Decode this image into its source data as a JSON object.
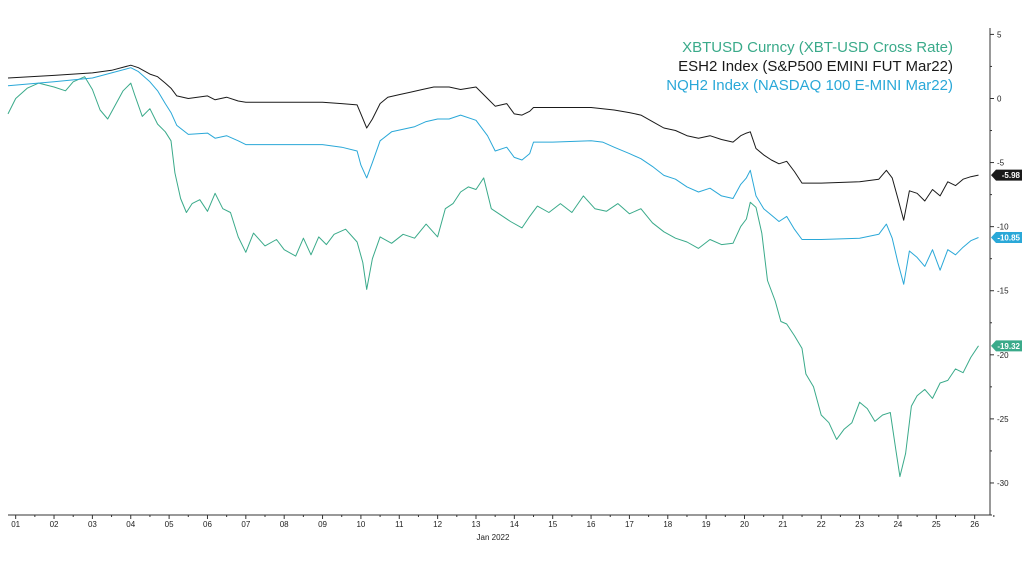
{
  "chart_data": {
    "type": "line",
    "xlabel": "Jan 2022",
    "ylabel": "",
    "x_ticks": [
      "01",
      "02",
      "03",
      "04",
      "05",
      "06",
      "07",
      "08",
      "09",
      "10",
      "11",
      "12",
      "13",
      "14",
      "15",
      "16",
      "17",
      "18",
      "19",
      "20",
      "21",
      "22",
      "23",
      "24",
      "25",
      "26"
    ],
    "y_ticks": [
      5,
      0,
      -5,
      -10,
      -15,
      -20,
      -25,
      -30
    ],
    "ylim": [
      -32.5,
      5.5
    ],
    "xlim": [
      0.8,
      26.4
    ],
    "grid": false,
    "legend_position": "top-right",
    "series": [
      {
        "name": "XBTUSD Curncy (XBT-USD Cross Rate)",
        "color": "#3aaa8a",
        "last_value": "-19.32",
        "points": [
          [
            0.8,
            -1.2
          ],
          [
            1.0,
            0.0
          ],
          [
            1.3,
            0.8
          ],
          [
            1.6,
            1.2
          ],
          [
            2.0,
            0.9
          ],
          [
            2.3,
            0.6
          ],
          [
            2.5,
            1.3
          ],
          [
            2.8,
            1.7
          ],
          [
            3.0,
            0.7
          ],
          [
            3.2,
            -0.9
          ],
          [
            3.4,
            -1.6
          ],
          [
            3.6,
            -0.5
          ],
          [
            3.8,
            0.6
          ],
          [
            4.0,
            1.2
          ],
          [
            4.1,
            0.3
          ],
          [
            4.3,
            -1.4
          ],
          [
            4.5,
            -0.8
          ],
          [
            4.7,
            -2.0
          ],
          [
            4.9,
            -2.6
          ],
          [
            5.05,
            -3.3
          ],
          [
            5.15,
            -5.8
          ],
          [
            5.3,
            -7.8
          ],
          [
            5.45,
            -8.9
          ],
          [
            5.6,
            -8.2
          ],
          [
            5.8,
            -7.9
          ],
          [
            6.0,
            -8.8
          ],
          [
            6.2,
            -7.4
          ],
          [
            6.4,
            -8.6
          ],
          [
            6.6,
            -8.9
          ],
          [
            6.8,
            -10.8
          ],
          [
            7.0,
            -12.0
          ],
          [
            7.2,
            -10.5
          ],
          [
            7.5,
            -11.5
          ],
          [
            7.8,
            -11.0
          ],
          [
            8.0,
            -11.8
          ],
          [
            8.3,
            -12.3
          ],
          [
            8.5,
            -10.9
          ],
          [
            8.7,
            -12.2
          ],
          [
            8.9,
            -10.8
          ],
          [
            9.1,
            -11.4
          ],
          [
            9.3,
            -10.6
          ],
          [
            9.6,
            -10.2
          ],
          [
            9.9,
            -11.2
          ],
          [
            10.05,
            -12.8
          ],
          [
            10.15,
            -14.9
          ],
          [
            10.3,
            -12.5
          ],
          [
            10.5,
            -10.8
          ],
          [
            10.8,
            -11.3
          ],
          [
            11.1,
            -10.6
          ],
          [
            11.4,
            -10.9
          ],
          [
            11.7,
            -9.8
          ],
          [
            12.0,
            -10.8
          ],
          [
            12.2,
            -8.6
          ],
          [
            12.4,
            -8.2
          ],
          [
            12.6,
            -7.3
          ],
          [
            12.8,
            -6.9
          ],
          [
            13.0,
            -7.1
          ],
          [
            13.2,
            -6.2
          ],
          [
            13.4,
            -8.6
          ],
          [
            13.6,
            -9.0
          ],
          [
            13.9,
            -9.6
          ],
          [
            14.2,
            -10.1
          ],
          [
            14.4,
            -9.2
          ],
          [
            14.6,
            -8.4
          ],
          [
            14.9,
            -8.9
          ],
          [
            15.2,
            -8.2
          ],
          [
            15.5,
            -8.9
          ],
          [
            15.8,
            -7.6
          ],
          [
            16.1,
            -8.6
          ],
          [
            16.4,
            -8.8
          ],
          [
            16.7,
            -8.2
          ],
          [
            17.0,
            -9.0
          ],
          [
            17.3,
            -8.6
          ],
          [
            17.6,
            -9.7
          ],
          [
            17.9,
            -10.4
          ],
          [
            18.2,
            -10.9
          ],
          [
            18.5,
            -11.2
          ],
          [
            18.8,
            -11.7
          ],
          [
            19.1,
            -11.0
          ],
          [
            19.4,
            -11.4
          ],
          [
            19.7,
            -11.3
          ],
          [
            19.9,
            -10.0
          ],
          [
            20.05,
            -9.4
          ],
          [
            20.15,
            -8.1
          ],
          [
            20.3,
            -8.5
          ],
          [
            20.45,
            -10.5
          ],
          [
            20.6,
            -14.2
          ],
          [
            20.8,
            -15.8
          ],
          [
            20.95,
            -17.4
          ],
          [
            21.1,
            -17.6
          ],
          [
            21.3,
            -18.5
          ],
          [
            21.5,
            -19.5
          ],
          [
            21.6,
            -21.5
          ],
          [
            21.8,
            -22.5
          ],
          [
            22.0,
            -24.7
          ],
          [
            22.2,
            -25.3
          ],
          [
            22.4,
            -26.6
          ],
          [
            22.6,
            -25.8
          ],
          [
            22.8,
            -25.3
          ],
          [
            23.0,
            -23.7
          ],
          [
            23.2,
            -24.2
          ],
          [
            23.4,
            -25.2
          ],
          [
            23.6,
            -24.7
          ],
          [
            23.8,
            -24.5
          ],
          [
            23.95,
            -27.5
          ],
          [
            24.05,
            -29.5
          ],
          [
            24.2,
            -27.7
          ],
          [
            24.35,
            -24.0
          ],
          [
            24.5,
            -23.2
          ],
          [
            24.7,
            -22.7
          ],
          [
            24.9,
            -23.4
          ],
          [
            25.1,
            -22.2
          ],
          [
            25.3,
            -22.0
          ],
          [
            25.5,
            -21.1
          ],
          [
            25.7,
            -21.4
          ],
          [
            25.9,
            -20.2
          ],
          [
            26.1,
            -19.3
          ]
        ]
      },
      {
        "name": "ESH2 Index (S&P500 EMINI FUT Mar22)",
        "color": "#1a1a1a",
        "last_value": "-5.98",
        "points": [
          [
            0.8,
            1.6
          ],
          [
            2.0,
            1.8
          ],
          [
            3.0,
            2.0
          ],
          [
            3.5,
            2.2
          ],
          [
            4.0,
            2.6
          ],
          [
            4.2,
            2.4
          ],
          [
            4.5,
            1.9
          ],
          [
            4.7,
            1.7
          ],
          [
            4.9,
            1.2
          ],
          [
            5.05,
            0.8
          ],
          [
            5.2,
            0.2
          ],
          [
            5.5,
            0.0
          ],
          [
            6.0,
            0.2
          ],
          [
            6.2,
            -0.1
          ],
          [
            6.5,
            0.1
          ],
          [
            6.8,
            -0.2
          ],
          [
            7.0,
            -0.3
          ],
          [
            8.0,
            -0.3
          ],
          [
            9.0,
            -0.3
          ],
          [
            9.5,
            -0.4
          ],
          [
            9.9,
            -0.5
          ],
          [
            10.0,
            -1.2
          ],
          [
            10.15,
            -2.3
          ],
          [
            10.3,
            -1.6
          ],
          [
            10.5,
            -0.4
          ],
          [
            10.7,
            0.1
          ],
          [
            11.0,
            0.3
          ],
          [
            11.3,
            0.5
          ],
          [
            11.6,
            0.7
          ],
          [
            11.9,
            0.9
          ],
          [
            12.3,
            0.9
          ],
          [
            12.6,
            0.7
          ],
          [
            13.0,
            0.9
          ],
          [
            13.3,
            0.0
          ],
          [
            13.5,
            -0.6
          ],
          [
            13.8,
            -0.4
          ],
          [
            14.0,
            -1.2
          ],
          [
            14.2,
            -1.3
          ],
          [
            14.4,
            -1.0
          ],
          [
            14.5,
            -0.7
          ],
          [
            15.0,
            -0.7
          ],
          [
            16.0,
            -0.7
          ],
          [
            16.3,
            -0.8
          ],
          [
            16.6,
            -0.9
          ],
          [
            17.0,
            -1.1
          ],
          [
            17.3,
            -1.3
          ],
          [
            17.6,
            -1.8
          ],
          [
            17.9,
            -2.3
          ],
          [
            18.2,
            -2.5
          ],
          [
            18.5,
            -2.9
          ],
          [
            18.8,
            -3.1
          ],
          [
            19.1,
            -2.9
          ],
          [
            19.4,
            -3.2
          ],
          [
            19.7,
            -3.4
          ],
          [
            19.9,
            -2.9
          ],
          [
            20.05,
            -2.7
          ],
          [
            20.15,
            -2.6
          ],
          [
            20.3,
            -3.9
          ],
          [
            20.5,
            -4.4
          ],
          [
            20.7,
            -4.8
          ],
          [
            20.9,
            -5.1
          ],
          [
            21.1,
            -4.9
          ],
          [
            21.3,
            -5.7
          ],
          [
            21.5,
            -6.6
          ],
          [
            22.0,
            -6.6
          ],
          [
            23.0,
            -6.5
          ],
          [
            23.5,
            -6.3
          ],
          [
            23.7,
            -5.6
          ],
          [
            23.85,
            -6.2
          ],
          [
            24.0,
            -7.8
          ],
          [
            24.15,
            -9.5
          ],
          [
            24.3,
            -7.2
          ],
          [
            24.5,
            -7.4
          ],
          [
            24.7,
            -8.0
          ],
          [
            24.9,
            -7.1
          ],
          [
            25.1,
            -7.6
          ],
          [
            25.3,
            -6.5
          ],
          [
            25.5,
            -6.8
          ],
          [
            25.7,
            -6.3
          ],
          [
            25.9,
            -6.1
          ],
          [
            26.1,
            -5.98
          ]
        ]
      },
      {
        "name": "NQH2 Index (NASDAQ 100 E-MINI Mar22)",
        "color": "#2aa8d8",
        "last_value": "-10.85",
        "points": [
          [
            0.8,
            1.0
          ],
          [
            2.0,
            1.3
          ],
          [
            3.0,
            1.6
          ],
          [
            3.5,
            2.0
          ],
          [
            4.0,
            2.4
          ],
          [
            4.2,
            2.1
          ],
          [
            4.5,
            1.3
          ],
          [
            4.7,
            0.6
          ],
          [
            4.9,
            -0.4
          ],
          [
            5.05,
            -1.1
          ],
          [
            5.2,
            -2.1
          ],
          [
            5.5,
            -2.8
          ],
          [
            6.0,
            -2.7
          ],
          [
            6.2,
            -3.1
          ],
          [
            6.5,
            -2.9
          ],
          [
            6.8,
            -3.3
          ],
          [
            7.0,
            -3.6
          ],
          [
            8.0,
            -3.6
          ],
          [
            9.0,
            -3.6
          ],
          [
            9.5,
            -3.8
          ],
          [
            9.9,
            -4.1
          ],
          [
            10.0,
            -5.2
          ],
          [
            10.15,
            -6.2
          ],
          [
            10.3,
            -5.0
          ],
          [
            10.5,
            -3.3
          ],
          [
            10.8,
            -2.6
          ],
          [
            11.1,
            -2.4
          ],
          [
            11.4,
            -2.2
          ],
          [
            11.7,
            -1.8
          ],
          [
            12.0,
            -1.6
          ],
          [
            12.3,
            -1.6
          ],
          [
            12.6,
            -1.3
          ],
          [
            13.0,
            -1.7
          ],
          [
            13.3,
            -2.9
          ],
          [
            13.5,
            -4.1
          ],
          [
            13.8,
            -3.8
          ],
          [
            14.0,
            -4.6
          ],
          [
            14.2,
            -4.8
          ],
          [
            14.4,
            -4.3
          ],
          [
            14.5,
            -3.4
          ],
          [
            15.0,
            -3.4
          ],
          [
            16.0,
            -3.3
          ],
          [
            16.3,
            -3.4
          ],
          [
            16.6,
            -3.8
          ],
          [
            17.0,
            -4.3
          ],
          [
            17.3,
            -4.7
          ],
          [
            17.6,
            -5.3
          ],
          [
            17.9,
            -6.0
          ],
          [
            18.2,
            -6.3
          ],
          [
            18.5,
            -6.9
          ],
          [
            18.8,
            -7.3
          ],
          [
            19.1,
            -7.0
          ],
          [
            19.4,
            -7.6
          ],
          [
            19.7,
            -7.8
          ],
          [
            19.9,
            -6.7
          ],
          [
            20.05,
            -6.2
          ],
          [
            20.15,
            -5.6
          ],
          [
            20.3,
            -7.6
          ],
          [
            20.5,
            -8.6
          ],
          [
            20.7,
            -9.1
          ],
          [
            20.9,
            -9.6
          ],
          [
            21.1,
            -9.2
          ],
          [
            21.3,
            -10.2
          ],
          [
            21.5,
            -11.0
          ],
          [
            22.0,
            -11.0
          ],
          [
            23.0,
            -10.9
          ],
          [
            23.5,
            -10.6
          ],
          [
            23.7,
            -9.8
          ],
          [
            23.85,
            -10.9
          ],
          [
            24.0,
            -12.8
          ],
          [
            24.15,
            -14.5
          ],
          [
            24.3,
            -11.9
          ],
          [
            24.5,
            -12.4
          ],
          [
            24.7,
            -13.1
          ],
          [
            24.9,
            -11.8
          ],
          [
            25.1,
            -13.4
          ],
          [
            25.3,
            -11.8
          ],
          [
            25.5,
            -12.2
          ],
          [
            25.7,
            -11.6
          ],
          [
            25.9,
            -11.1
          ],
          [
            26.1,
            -10.85
          ]
        ]
      }
    ]
  },
  "colors": {
    "axis": "#333333",
    "background": "#ffffff"
  }
}
